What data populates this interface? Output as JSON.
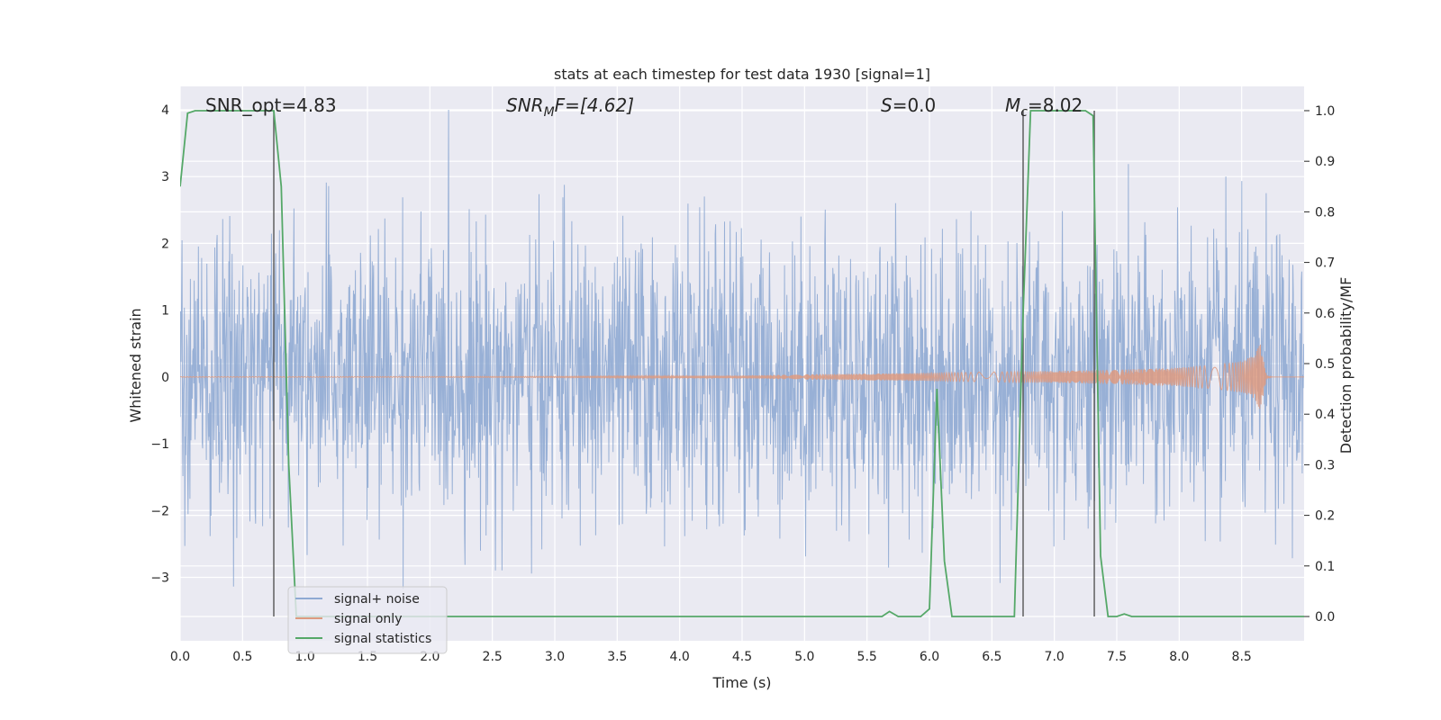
{
  "chart_data": {
    "type": "line",
    "title": "stats at each timestep for test data 1930 [signal=1]",
    "xlabel": "Time (s)",
    "ylabel_left": "Whitened strain",
    "ylabel_right": "Detection probability/MF",
    "xlim": [
      0,
      9.0
    ],
    "ylim_left": [
      -3.95,
      4.35
    ],
    "ylim_right": [
      -0.048,
      1.048
    ],
    "x_ticks": [
      "0.0",
      "0.5",
      "1.0",
      "1.5",
      "2.0",
      "2.5",
      "3.0",
      "3.5",
      "4.0",
      "4.5",
      "5.0",
      "5.5",
      "6.0",
      "6.5",
      "7.0",
      "7.5",
      "8.0",
      "8.5"
    ],
    "y_ticks_left": [
      "−3",
      "−2",
      "−1",
      "0",
      "1",
      "2",
      "3",
      "4"
    ],
    "y_ticks_right": [
      "0.0",
      "0.1",
      "0.2",
      "0.3",
      "0.4",
      "0.5",
      "0.6",
      "0.7",
      "0.8",
      "0.9",
      "1.0"
    ],
    "grid": true,
    "legend_position": "lower-left",
    "annotations": {
      "snr_opt": "SNR_opt=4.83",
      "snr_mf_main": "SNR",
      "snr_mf_sub": "M",
      "snr_mf_rest": "F=[4.62]",
      "s_main": "S",
      "s_rest": "=0.0",
      "mc_main": "M",
      "mc_sub": "c",
      "mc_rest": "=8.02"
    },
    "vertical_lines_x": [
      0.75,
      6.75,
      7.32
    ],
    "series": [
      {
        "name": "signal+ noise",
        "color": "#8faad3",
        "description_values": "whitened strain noise, approx gaussian, range -3.6 to 4.0"
      },
      {
        "name": "signal only",
        "color": "#dd9a80",
        "envelope": {
          "x": [
            0,
            3.0,
            4.5,
            5.0,
            6.0,
            7.0,
            7.5,
            8.0,
            8.3,
            8.5,
            8.6,
            8.65,
            8.7,
            8.75,
            9.0
          ],
          "amp": [
            0.005,
            0.01,
            0.02,
            0.04,
            0.06,
            0.09,
            0.11,
            0.14,
            0.18,
            0.24,
            0.32,
            0.5,
            0.02,
            0,
            0
          ]
        }
      },
      {
        "name": "signal statistics",
        "color": "#55a868",
        "x": [
          0,
          0.06,
          0.12,
          0.18,
          0.25,
          0.31,
          0.37,
          0.43,
          0.5,
          0.56,
          0.62,
          0.68,
          0.75,
          0.81,
          0.87,
          0.93,
          1.0,
          5.5,
          5.62,
          5.68,
          5.75,
          5.81,
          5.87,
          5.93,
          6.0,
          6.06,
          6.12,
          6.18,
          6.25,
          6.31,
          6.68,
          6.75,
          6.81,
          6.87,
          6.93,
          7.0,
          7.06,
          7.12,
          7.18,
          7.25,
          7.31,
          7.37,
          7.43,
          7.5,
          7.56,
          7.62,
          7.68,
          9.0
        ],
        "values": [
          0.85,
          0.995,
          1.0,
          1.0,
          1.0,
          1.0,
          1.0,
          1.0,
          1.0,
          1.0,
          1.0,
          1.0,
          1.0,
          0.85,
          0.3,
          0.0,
          0.0,
          0.0,
          0.0,
          0.01,
          0.0,
          0.0,
          0.0,
          0.0,
          0.015,
          0.45,
          0.11,
          0.0,
          0.0,
          0.0,
          0.0,
          0.6,
          1.0,
          1.0,
          1.0,
          1.0,
          1.0,
          1.0,
          1.0,
          1.0,
          0.99,
          0.12,
          0.0,
          0.0,
          0.005,
          0.0,
          0.0,
          0.0
        ]
      }
    ]
  }
}
